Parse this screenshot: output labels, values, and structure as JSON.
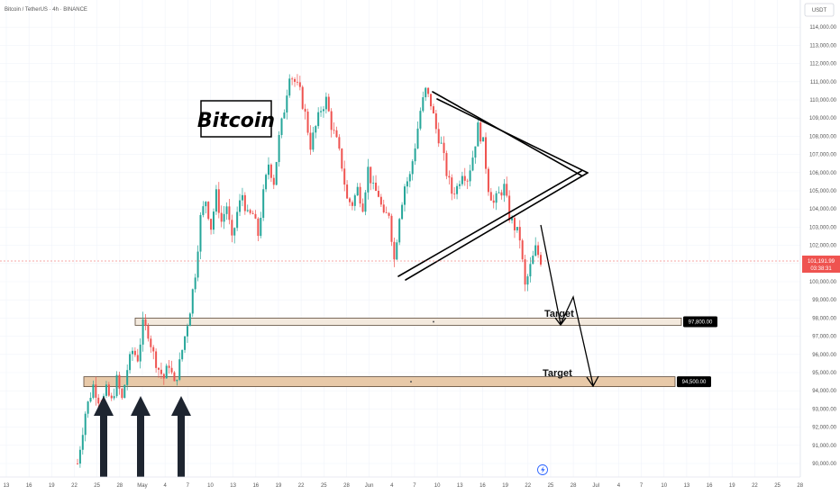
{
  "header": {
    "symbol": "Bitcoin / TetherUS · 4h · BINANCE",
    "currency": "USDT"
  },
  "annotations": {
    "title": "Bitcoin",
    "target1": "Target",
    "target2": "Target"
  },
  "price_tag": {
    "value": "101,191.99",
    "countdown": "03:38:31"
  },
  "chart_data": {
    "type": "candlestick",
    "y_axis": {
      "range": [
        89500,
        115500
      ],
      "ticks": [
        "90,000.00",
        "91,000.00",
        "92,000.00",
        "93,000.00",
        "94,000.00",
        "95,000.00",
        "96,000.00",
        "97,000.00",
        "98,000.00",
        "99,000.00",
        "100,000.00",
        "101,000.00",
        "102,000.00",
        "103,000.00",
        "104,000.00",
        "105,000.00",
        "106,000.00",
        "107,000.00",
        "108,000.00",
        "109,000.00",
        "110,000.00",
        "111,000.00",
        "112,000.00",
        "113,000.00",
        "114,000.00"
      ]
    },
    "x_axis": {
      "ticks": [
        "13",
        "16",
        "19",
        "22",
        "25",
        "28",
        "May",
        "4",
        "7",
        "10",
        "13",
        "16",
        "19",
        "22",
        "25",
        "28",
        "Jun",
        "4",
        "7",
        "10",
        "13",
        "16",
        "19",
        "22",
        "25",
        "28",
        "Jul",
        "4",
        "7",
        "10",
        "13",
        "16",
        "19",
        "22",
        "25",
        "28"
      ]
    },
    "current_price": 101191.99,
    "levels": [
      {
        "price": 97800,
        "label": "97,800.00"
      },
      {
        "price": 94500,
        "label": "94,500.00"
      }
    ],
    "price_path": [
      [
        0,
        90000
      ],
      [
        3,
        92800
      ],
      [
        6,
        94300
      ],
      [
        9,
        93200
      ],
      [
        11,
        94000
      ],
      [
        13,
        93400
      ],
      [
        15,
        94600
      ],
      [
        17,
        93500
      ],
      [
        19,
        95200
      ],
      [
        21,
        96200
      ],
      [
        23,
        95800
      ],
      [
        25,
        97600
      ],
      [
        27,
        97200
      ],
      [
        29,
        96000
      ],
      [
        31,
        95200
      ],
      [
        33,
        94700
      ],
      [
        35,
        95500
      ],
      [
        37,
        94300
      ],
      [
        39,
        95500
      ],
      [
        41,
        97000
      ],
      [
        43,
        98500
      ],
      [
        45,
        100500
      ],
      [
        47,
        103500
      ],
      [
        49,
        104500
      ],
      [
        51,
        103000
      ],
      [
        53,
        104800
      ],
      [
        55,
        103300
      ],
      [
        57,
        104200
      ],
      [
        59,
        102200
      ],
      [
        61,
        103800
      ],
      [
        63,
        104800
      ],
      [
        65,
        103600
      ],
      [
        67,
        103700
      ],
      [
        69,
        102600
      ],
      [
        71,
        104800
      ],
      [
        73,
        106500
      ],
      [
        75,
        105500
      ],
      [
        77,
        107900
      ],
      [
        79,
        109500
      ],
      [
        81,
        111500
      ],
      [
        83,
        111000
      ],
      [
        85,
        110400
      ],
      [
        87,
        109200
      ],
      [
        89,
        107500
      ],
      [
        91,
        108500
      ],
      [
        93,
        109500
      ],
      [
        95,
        110000
      ],
      [
        97,
        108600
      ],
      [
        99,
        107700
      ],
      [
        101,
        106400
      ],
      [
        103,
        104500
      ],
      [
        105,
        104300
      ],
      [
        107,
        105100
      ],
      [
        109,
        104200
      ],
      [
        111,
        106200
      ],
      [
        113,
        105100
      ],
      [
        115,
        104800
      ],
      [
        117,
        103500
      ],
      [
        119,
        103800
      ],
      [
        121,
        101200
      ],
      [
        123,
        103700
      ],
      [
        125,
        105300
      ],
      [
        127,
        105800
      ],
      [
        129,
        107500
      ],
      [
        131,
        109400
      ],
      [
        133,
        110500
      ],
      [
        135,
        109800
      ],
      [
        137,
        108400
      ],
      [
        139,
        107500
      ],
      [
        141,
        106000
      ],
      [
        143,
        104900
      ],
      [
        145,
        105200
      ],
      [
        147,
        106100
      ],
      [
        149,
        105700
      ],
      [
        151,
        106900
      ],
      [
        153,
        108500
      ],
      [
        155,
        107600
      ],
      [
        157,
        105200
      ],
      [
        159,
        104300
      ],
      [
        161,
        104800
      ],
      [
        163,
        105200
      ],
      [
        165,
        103600
      ],
      [
        167,
        103000
      ],
      [
        169,
        102400
      ],
      [
        171,
        99700
      ],
      [
        173,
        100800
      ],
      [
        175,
        101800
      ],
      [
        177,
        101190
      ]
    ]
  }
}
